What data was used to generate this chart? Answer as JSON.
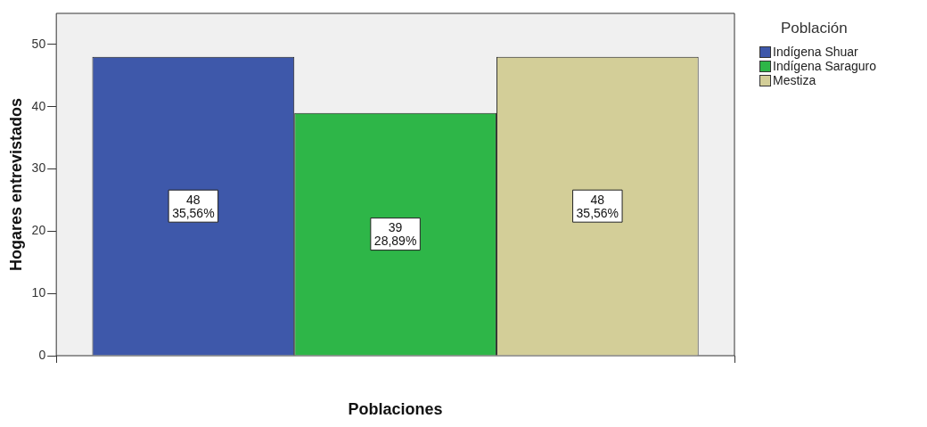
{
  "chart_data": {
    "type": "bar",
    "xlabel": "Poblaciones",
    "ylabel": "Hogares entrevistados",
    "legend_title": "Población",
    "categories": [
      null
    ],
    "series": [
      {
        "name": "Indígena Shuar",
        "color": "#3e58aa",
        "values": [
          48
        ],
        "value_labels": [
          "48\n35,56%"
        ]
      },
      {
        "name": "Indígena Saraguro",
        "color": "#2eb648",
        "values": [
          39
        ],
        "value_labels": [
          "39\n28,89%"
        ]
      },
      {
        "name": "Mestiza",
        "color": "#d3ce98",
        "values": [
          48
        ],
        "value_labels": [
          "48\n35,56%"
        ]
      }
    ],
    "ylim": [
      0,
      55
    ],
    "yticks": [
      0,
      10,
      20,
      30,
      40,
      50
    ],
    "grid": false,
    "legend": "top right"
  }
}
